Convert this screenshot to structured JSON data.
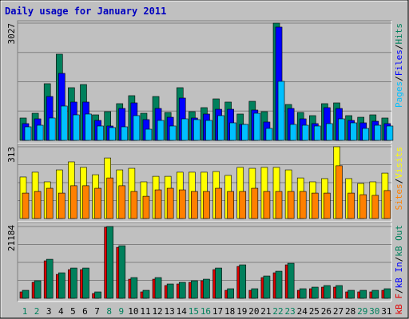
{
  "chart_data": [
    {
      "type": "bar",
      "title": "Daily usage for January 2011",
      "ylim": [
        0,
        3027
      ],
      "yticks": [
        3027
      ],
      "legend_separator": "/",
      "legend": [
        {
          "name": "Pages",
          "color": "#00c0ff"
        },
        {
          "name": "Files",
          "color": "#0000ff"
        },
        {
          "name": "Hits",
          "color": "#00805c"
        }
      ],
      "series": [
        {
          "legend": 2,
          "values": [
            577,
            700,
            1463,
            2225,
            1360,
            1442,
            659,
            742,
            948,
            1154,
            700,
            1133,
            721,
            1360,
            742,
            845,
            1071,
            989,
            680,
            1009,
            742,
            3027,
            927,
            721,
            639,
            948,
            968,
            639,
            597,
            659,
            577
          ]
        },
        {
          "legend": 1,
          "values": [
            433,
            556,
            1133,
            1730,
            989,
            989,
            515,
            371,
            824,
            968,
            536,
            824,
            597,
            1092,
            577,
            680,
            803,
            803,
            412,
            783,
            474,
            2925,
            824,
            556,
            433,
            845,
            824,
            515,
            453,
            494,
            433
          ]
        },
        {
          "legend": 0,
          "values": [
            350,
            391,
            577,
            886,
            659,
            680,
            371,
            330,
            350,
            639,
            288,
            515,
            371,
            556,
            536,
            515,
            639,
            453,
            412,
            700,
            309,
            1524,
            412,
            391,
            371,
            433,
            556,
            453,
            309,
            391,
            371
          ]
        }
      ]
    },
    {
      "type": "bar",
      "ylim": [
        0,
        313
      ],
      "yticks": [
        313
      ],
      "legend": [
        {
          "name": "Sites",
          "color": "#ff8000"
        },
        {
          "name": "Visits",
          "color": "#ffff00"
        }
      ],
      "series": [
        {
          "legend": 1,
          "values": [
            181,
            202,
            160,
            212,
            247,
            223,
            191,
            264,
            212,
            219,
            160,
            184,
            184,
            202,
            202,
            202,
            205,
            188,
            223,
            219,
            223,
            223,
            212,
            177,
            160,
            174,
            313,
            174,
            153,
            160,
            198
          ]
        },
        {
          "legend": 0,
          "values": [
            111,
            118,
            132,
            111,
            143,
            143,
            132,
            177,
            143,
            118,
            97,
            125,
            132,
            125,
            118,
            118,
            132,
            118,
            118,
            132,
            118,
            118,
            118,
            118,
            111,
            111,
            230,
            111,
            104,
            101,
            122
          ]
        }
      ]
    },
    {
      "type": "bar",
      "ylim": [
        0,
        21184
      ],
      "yticks": [
        21184
      ],
      "legend": [
        {
          "name": "kB F",
          "color": "#e00000"
        },
        {
          "name": "kB In",
          "color": "#0000ff"
        },
        {
          "name": "kB Out",
          "color": "#00805c"
        }
      ],
      "series": [
        {
          "legend": 0,
          "values": [
            1880,
            4700,
            11050,
            7050,
            8460,
            8460,
            1410,
            20950,
            15040,
            5640,
            1880,
            5640,
            3760,
            4230,
            4700,
            5170,
            8460,
            2350,
            9400,
            2350,
            6110,
            7520,
            9870,
            2350,
            2820,
            3290,
            3290,
            1880,
            1880,
            1880,
            2350
          ]
        },
        {
          "legend": 2,
          "values": [
            2350,
            5170,
            11515,
            7520,
            8930,
            8930,
            1880,
            21184,
            15510,
            6110,
            2350,
            6110,
            4230,
            4700,
            5170,
            5640,
            8930,
            2820,
            9870,
            2820,
            6580,
            7990,
            10340,
            2820,
            3290,
            3760,
            3760,
            2350,
            2350,
            2350,
            2820
          ]
        }
      ],
      "categories": [
        "1",
        "2",
        "3",
        "4",
        "5",
        "6",
        "7",
        "8",
        "9",
        "10",
        "11",
        "12",
        "13",
        "14",
        "15",
        "16",
        "17",
        "18",
        "19",
        "20",
        "21",
        "22",
        "23",
        "24",
        "25",
        "26",
        "27",
        "28",
        "29",
        "30",
        "31"
      ],
      "category_colors": [
        "#00805c",
        "#00805c",
        "#000000",
        "#000000",
        "#000000",
        "#000000",
        "#000000",
        "#00805c",
        "#00805c",
        "#000000",
        "#000000",
        "#000000",
        "#000000",
        "#000000",
        "#00805c",
        "#00805c",
        "#000000",
        "#000000",
        "#000000",
        "#000000",
        "#000000",
        "#00805c",
        "#00805c",
        "#000000",
        "#000000",
        "#000000",
        "#000000",
        "#000000",
        "#00805c",
        "#00805c",
        "#000000"
      ]
    }
  ]
}
